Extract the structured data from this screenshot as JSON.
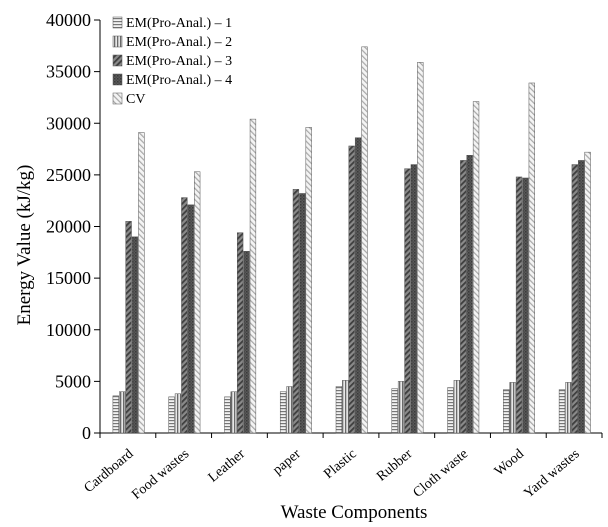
{
  "chart_data": {
    "type": "bar",
    "title": "",
    "xlabel": "Waste Components",
    "ylabel": "Energy Value (kJ/kg)",
    "ylim": [
      0,
      40000
    ],
    "yticks": [
      0,
      5000,
      10000,
      15000,
      20000,
      25000,
      30000,
      35000,
      40000
    ],
    "ytick_labels": [
      "0",
      "5000",
      "10000",
      "15000",
      "20000",
      "25000",
      "30000",
      "35000",
      "40000"
    ],
    "grid": false,
    "legend_position": "top-left",
    "categories": [
      "Cardboard",
      "Food wastes",
      "Leather",
      "paper",
      "Plastic",
      "Rubber",
      "Cloth waste",
      "Wood",
      "Yard wastes"
    ],
    "series": [
      {
        "name": "EM(Pro-Anal.) – 1",
        "pattern": "horizontal",
        "values": [
          3600,
          3500,
          3500,
          4000,
          4500,
          4300,
          4400,
          4200,
          4200
        ]
      },
      {
        "name": "EM(Pro-Anal.) – 2",
        "pattern": "vertical",
        "values": [
          4000,
          3800,
          4000,
          4500,
          5100,
          5000,
          5100,
          4900,
          4900
        ]
      },
      {
        "name": "EM(Pro-Anal.) – 3",
        "pattern": "diagonal",
        "values": [
          20500,
          22800,
          19400,
          23600,
          27800,
          25600,
          26400,
          24800,
          26000
        ]
      },
      {
        "name": "EM(Pro-Anal.) – 4",
        "pattern": "dark",
        "values": [
          19000,
          22100,
          17600,
          23200,
          28600,
          26000,
          26900,
          24700,
          26400
        ]
      },
      {
        "name": "CV",
        "pattern": "light",
        "values": [
          29100,
          25300,
          30400,
          29600,
          37400,
          35900,
          32100,
          33900,
          27200
        ]
      }
    ]
  }
}
